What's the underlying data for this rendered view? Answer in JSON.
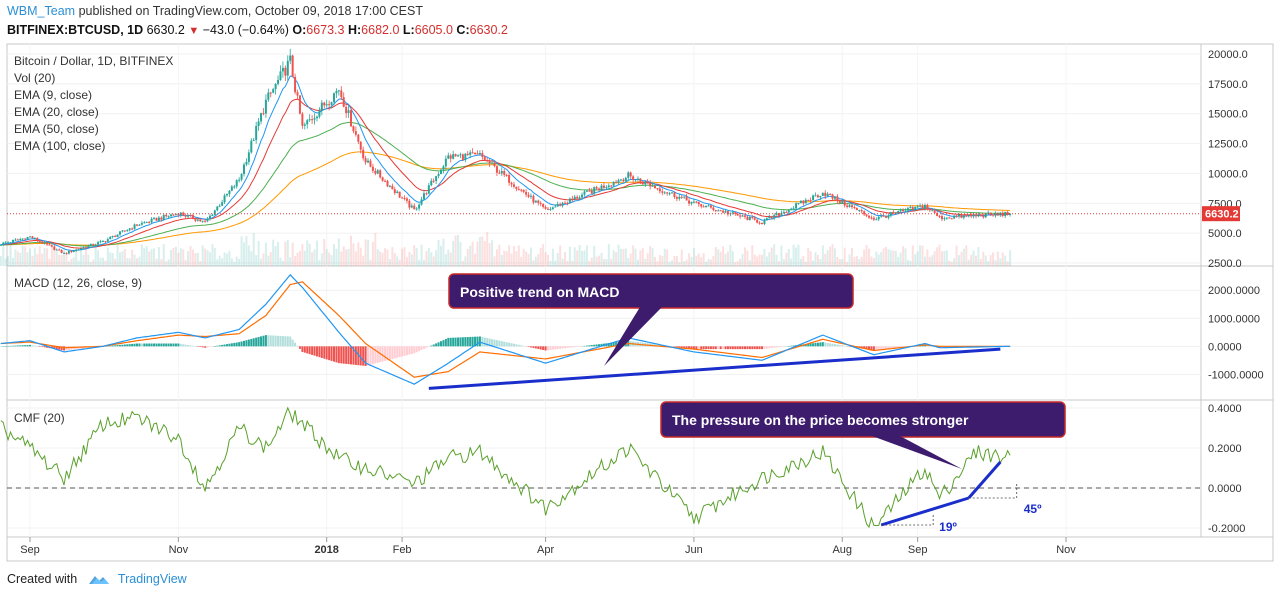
{
  "header": {
    "user": "WBM_Team",
    "published_text": "published on TradingView.com, October 09, 2018 17:00 CEST",
    "symbol": "BITFINEX:BTCUSD, 1D",
    "last": "6630.2",
    "change": "−43.0 (−0.64%)",
    "o_label": "O:",
    "o_val": "6673.3",
    "h_label": "H:",
    "h_val": "6682.0",
    "l_label": "L:",
    "l_val": "6605.0",
    "c_label": "C:",
    "c_val": "6630.2"
  },
  "footer": {
    "created_with": "Created with",
    "brand": "TradingView"
  },
  "colors": {
    "up": "#26a69a",
    "down": "#ef5350",
    "ema9": "#2196f3",
    "ema20": "#e53935",
    "ema50": "#4caf50",
    "ema100": "#ff9800",
    "macd": "#2196f3",
    "signal": "#ff6d00",
    "cmf": "#5aa02c",
    "callout": "#3d1c6e",
    "callout_border": "#c62828",
    "trend": "#1a2ecb"
  },
  "chart_data": [
    {
      "type": "candlestick",
      "panel": "price",
      "title": "Bitcoin / Dollar, 1D, BITFINEX",
      "indicators": [
        "Vol (20)",
        "EMA (9, close)",
        "EMA (20, close)",
        "EMA (50, close)",
        "EMA (100, close)"
      ],
      "x_ticks": [
        "Sep",
        "Nov",
        "2018",
        "Feb",
        "Apr",
        "Jun",
        "Aug",
        "Sep",
        "Nov"
      ],
      "x_tick_dates": [
        "2017-09-01",
        "2017-11-01",
        "2018-01-01",
        "2018-02-01",
        "2018-04-01",
        "2018-06-01",
        "2018-08-01",
        "2018-09-01",
        "2018-11-01"
      ],
      "y_ticks": [
        2500,
        5000,
        7500,
        10000,
        12500,
        15000,
        17500,
        20000
      ],
      "y_tick_labels": [
        "2500.0",
        "5000.0",
        "7500.0",
        "10000.0",
        "12500.0",
        "15000.0",
        "17500.0",
        "20000.0"
      ],
      "ylim": [
        2000,
        20500
      ],
      "last_price_label": "6630.2",
      "last_price": 6630.2,
      "price_path": [
        [
          "2017-08-20",
          4100
        ],
        [
          "2017-09-01",
          4700
        ],
        [
          "2017-09-15",
          3300
        ],
        [
          "2017-10-01",
          4300
        ],
        [
          "2017-10-15",
          5700
        ],
        [
          "2017-11-01",
          6700
        ],
        [
          "2017-11-12",
          5900
        ],
        [
          "2017-11-26",
          9500
        ],
        [
          "2017-12-07",
          16000
        ],
        [
          "2017-12-17",
          19400
        ],
        [
          "2017-12-22",
          13800
        ],
        [
          "2018-01-06",
          17100
        ],
        [
          "2018-01-17",
          11000
        ],
        [
          "2018-02-06",
          6900
        ],
        [
          "2018-02-20",
          11400
        ],
        [
          "2018-03-05",
          11500
        ],
        [
          "2018-04-01",
          6900
        ],
        [
          "2018-05-05",
          9800
        ],
        [
          "2018-06-01",
          7500
        ],
        [
          "2018-06-29",
          5900
        ],
        [
          "2018-07-24",
          8400
        ],
        [
          "2018-08-14",
          6200
        ],
        [
          "2018-09-04",
          7300
        ],
        [
          "2018-09-10",
          6300
        ],
        [
          "2018-10-09",
          6630
        ]
      ]
    },
    {
      "type": "line",
      "panel": "macd",
      "title": "MACD (12, 26, close, 9)",
      "y_ticks": [
        -1000,
        0,
        1000,
        2000
      ],
      "y_tick_labels": [
        "-1000.0000",
        "0.0000",
        "1000.0000",
        "2000.0000"
      ],
      "ylim": [
        -1700,
        2650
      ],
      "series": [
        {
          "name": "MACD",
          "points": [
            [
              "2017-08-20",
              100
            ],
            [
              "2017-09-01",
              200
            ],
            [
              "2017-09-15",
              -200
            ],
            [
              "2017-10-01",
              0
            ],
            [
              "2017-10-15",
              300
            ],
            [
              "2017-11-01",
              500
            ],
            [
              "2017-11-12",
              300
            ],
            [
              "2017-11-26",
              600
            ],
            [
              "2017-12-07",
              1500
            ],
            [
              "2017-12-17",
              2550
            ],
            [
              "2017-12-22",
              2100
            ],
            [
              "2018-01-06",
              500
            ],
            [
              "2018-01-17",
              -600
            ],
            [
              "2018-02-06",
              -1350
            ],
            [
              "2018-02-20",
              -600
            ],
            [
              "2018-03-05",
              150
            ],
            [
              "2018-04-01",
              -600
            ],
            [
              "2018-05-05",
              300
            ],
            [
              "2018-06-01",
              -200
            ],
            [
              "2018-06-29",
              -500
            ],
            [
              "2018-07-24",
              400
            ],
            [
              "2018-08-14",
              -300
            ],
            [
              "2018-09-04",
              100
            ],
            [
              "2018-09-10",
              -50
            ],
            [
              "2018-10-09",
              0
            ]
          ]
        },
        {
          "name": "Signal",
          "points": [
            [
              "2017-08-20",
              100
            ],
            [
              "2017-09-01",
              150
            ],
            [
              "2017-09-15",
              -50
            ],
            [
              "2017-10-01",
              0
            ],
            [
              "2017-10-15",
              200
            ],
            [
              "2017-11-01",
              400
            ],
            [
              "2017-11-12",
              350
            ],
            [
              "2017-11-26",
              450
            ],
            [
              "2017-12-07",
              1100
            ],
            [
              "2017-12-17",
              2200
            ],
            [
              "2017-12-22",
              2300
            ],
            [
              "2018-01-06",
              1100
            ],
            [
              "2018-01-17",
              100
            ],
            [
              "2018-02-06",
              -1100
            ],
            [
              "2018-02-20",
              -900
            ],
            [
              "2018-03-05",
              -200
            ],
            [
              "2018-04-01",
              -450
            ],
            [
              "2018-05-05",
              100
            ],
            [
              "2018-06-01",
              -100
            ],
            [
              "2018-06-29",
              -400
            ],
            [
              "2018-07-24",
              250
            ],
            [
              "2018-08-14",
              -150
            ],
            [
              "2018-09-04",
              50
            ],
            [
              "2018-09-10",
              0
            ],
            [
              "2018-10-09",
              0
            ]
          ]
        }
      ],
      "trendline": [
        [
          "2018-02-12",
          -1500
        ],
        [
          "2018-10-05",
          -100
        ]
      ]
    },
    {
      "type": "line",
      "panel": "cmf",
      "title": "CMF (20)",
      "y_ticks": [
        -0.2,
        0,
        0.2,
        0.4
      ],
      "y_tick_labels": [
        "-0.2000",
        "0.0000",
        "0.2000",
        "0.4000"
      ],
      "ylim": [
        -0.23,
        0.42
      ],
      "series": [
        {
          "name": "CMF",
          "points": [
            [
              "2017-08-20",
              0.3
            ],
            [
              "2017-09-01",
              0.2
            ],
            [
              "2017-09-15",
              0.05
            ],
            [
              "2017-10-01",
              0.32
            ],
            [
              "2017-10-15",
              0.35
            ],
            [
              "2017-11-01",
              0.25
            ],
            [
              "2017-11-12",
              0.0
            ],
            [
              "2017-11-26",
              0.3
            ],
            [
              "2017-12-07",
              0.2
            ],
            [
              "2017-12-17",
              0.38
            ],
            [
              "2017-12-22",
              0.32
            ],
            [
              "2018-01-06",
              0.15
            ],
            [
              "2018-01-17",
              0.1
            ],
            [
              "2018-02-06",
              0.02
            ],
            [
              "2018-02-20",
              0.15
            ],
            [
              "2018-03-05",
              0.18
            ],
            [
              "2018-04-01",
              -0.1
            ],
            [
              "2018-05-05",
              0.2
            ],
            [
              "2018-06-01",
              -0.15
            ],
            [
              "2018-06-29",
              0.05
            ],
            [
              "2018-07-24",
              0.18
            ],
            [
              "2018-08-14",
              -0.2
            ],
            [
              "2018-09-04",
              0.1
            ],
            [
              "2018-09-10",
              -0.05
            ],
            [
              "2018-09-25",
              0.18
            ],
            [
              "2018-10-09",
              0.15
            ]
          ]
        }
      ],
      "trendline_1": [
        [
          "2018-08-17",
          -0.185
        ],
        [
          "2018-09-22",
          -0.05
        ]
      ],
      "trendline_2": [
        [
          "2018-09-22",
          -0.05
        ],
        [
          "2018-10-05",
          0.13
        ]
      ],
      "angle_1_label": "19º",
      "angle_2_label": "45º"
    }
  ],
  "callouts": {
    "macd": "Positive trend on MACD",
    "cmf": "The pressure on the price becomes stronger"
  }
}
